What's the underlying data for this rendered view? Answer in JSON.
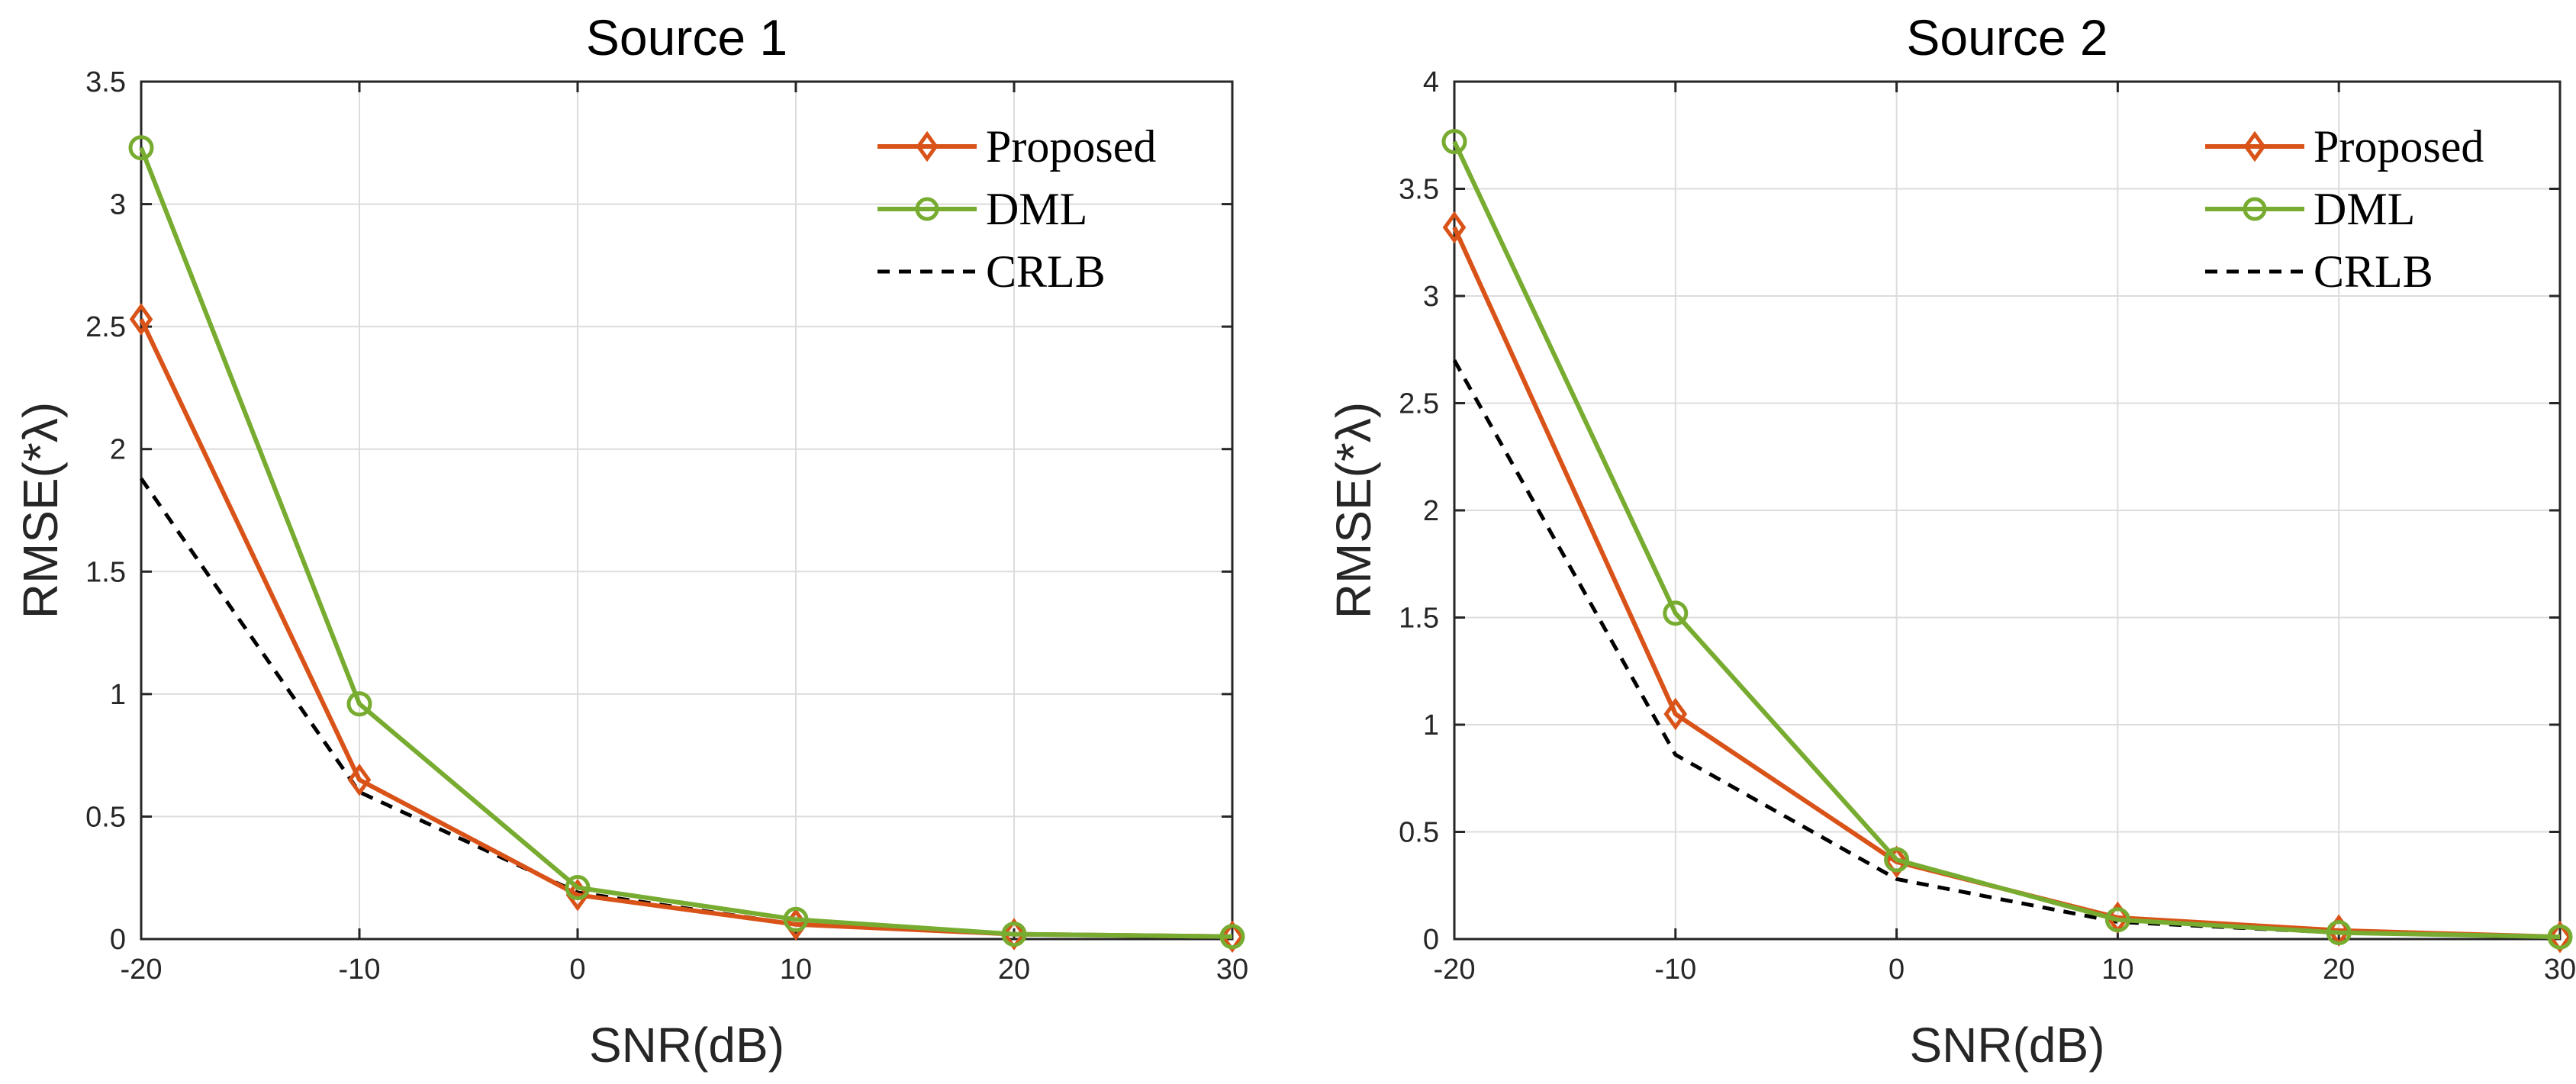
{
  "chart_data": [
    {
      "type": "line",
      "title": "Source 1",
      "xlabel": "SNR(dB)",
      "ylabel": "RMSE(*λ)",
      "x": [
        -20,
        -10,
        0,
        10,
        20,
        30
      ],
      "xlim": [
        -20,
        30
      ],
      "ylim": [
        0,
        3.5
      ],
      "xticks": [
        -20,
        -10,
        0,
        10,
        20,
        30
      ],
      "yticks": [
        0,
        0.5,
        1,
        1.5,
        2,
        2.5,
        3,
        3.5
      ],
      "xtick_labels": [
        "-20",
        "-10",
        "0",
        "10",
        "20",
        "30"
      ],
      "ytick_labels": [
        "0",
        "0.5",
        "1",
        "1.5",
        "2",
        "2.5",
        "3",
        "3.5"
      ],
      "grid": true,
      "legend_position": "top-right",
      "series": [
        {
          "name": "Proposed",
          "color": "#d95319",
          "marker": "diamond",
          "dash": "solid",
          "values": [
            2.53,
            0.65,
            0.18,
            0.06,
            0.02,
            0.01
          ]
        },
        {
          "name": "DML",
          "color": "#77ac30",
          "marker": "circle",
          "dash": "solid",
          "values": [
            3.23,
            0.96,
            0.21,
            0.08,
            0.02,
            0.01
          ]
        },
        {
          "name": "CRLB",
          "color": "#000000",
          "marker": "none",
          "dash": "dashed",
          "values": [
            1.88,
            0.6,
            0.19,
            0.06,
            0.02,
            0.01
          ]
        }
      ]
    },
    {
      "type": "line",
      "title": "Source 2",
      "xlabel": "SNR(dB)",
      "ylabel": "RMSE(*λ)",
      "x": [
        -20,
        -10,
        0,
        10,
        20,
        30
      ],
      "xlim": [
        -20,
        30
      ],
      "ylim": [
        0,
        4
      ],
      "xticks": [
        -20,
        -10,
        0,
        10,
        20,
        30
      ],
      "yticks": [
        0,
        0.5,
        1,
        1.5,
        2,
        2.5,
        3,
        3.5,
        4
      ],
      "xtick_labels": [
        "-20",
        "-10",
        "0",
        "10",
        "20",
        "30"
      ],
      "ytick_labels": [
        "0",
        "0.5",
        "1",
        "1.5",
        "2",
        "2.5",
        "3",
        "3.5",
        "4"
      ],
      "grid": true,
      "legend_position": "top-right",
      "series": [
        {
          "name": "Proposed",
          "color": "#d95319",
          "marker": "diamond",
          "dash": "solid",
          "values": [
            3.32,
            1.05,
            0.36,
            0.1,
            0.04,
            0.01
          ]
        },
        {
          "name": "DML",
          "color": "#77ac30",
          "marker": "circle",
          "dash": "solid",
          "values": [
            3.72,
            1.52,
            0.37,
            0.09,
            0.03,
            0.01
          ]
        },
        {
          "name": "CRLB",
          "color": "#000000",
          "marker": "none",
          "dash": "dashed",
          "values": [
            2.7,
            0.86,
            0.28,
            0.08,
            0.03,
            0.01
          ]
        }
      ]
    }
  ]
}
